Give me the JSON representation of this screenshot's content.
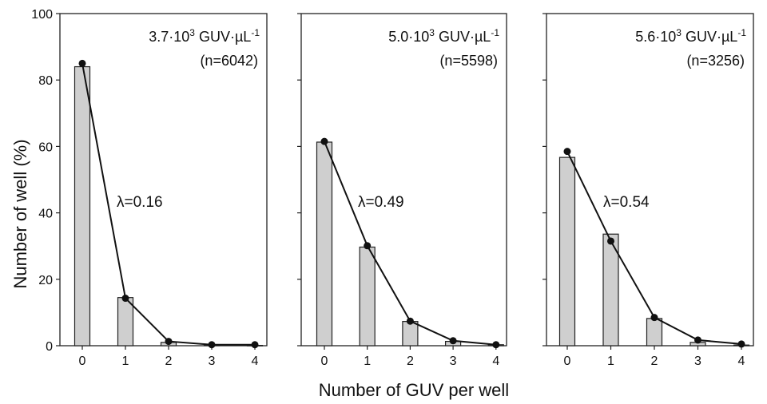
{
  "chart_data": {
    "type": "bar",
    "ylabel": "Number of  well (%)",
    "xlabel": "Number of GUV per well",
    "ylim": [
      0,
      100
    ],
    "yticks": [
      0,
      20,
      40,
      60,
      80,
      100
    ],
    "categories": [
      "0",
      "1",
      "2",
      "3",
      "4"
    ],
    "panels": [
      {
        "concentration": "3.7·10",
        "exponent": "3",
        "unit": " GUV·µL",
        "unit_exponent": "-1",
        "n_label": "(n=6042)",
        "lambda_label": "λ=0.16",
        "bars": [
          84,
          14.5,
          1,
          0.2,
          0.1
        ],
        "poisson": [
          85,
          14.3,
          1.3,
          0.3,
          0.3
        ]
      },
      {
        "concentration": "5.0·10",
        "exponent": "3",
        "unit": " GUV·µL",
        "unit_exponent": "-1",
        "n_label": "(n=5598)",
        "lambda_label": "λ=0.49",
        "bars": [
          61.3,
          29.7,
          7.3,
          1.3,
          0.3
        ],
        "poisson": [
          61.5,
          30.1,
          7.4,
          1.5,
          0.3
        ]
      },
      {
        "concentration": "5.6·10",
        "exponent": "3",
        "unit": " GUV·µL",
        "unit_exponent": "-1",
        "n_label": "(n=3256)",
        "lambda_label": "λ=0.54",
        "bars": [
          56.7,
          33.6,
          8.2,
          1,
          0.2
        ],
        "poisson": [
          58.5,
          31.5,
          8.5,
          1.7,
          0.5
        ]
      }
    ],
    "colors": {
      "bar_fill": "#cfcfcf",
      "bar_stroke": "#222222",
      "line": "#111111"
    }
  }
}
